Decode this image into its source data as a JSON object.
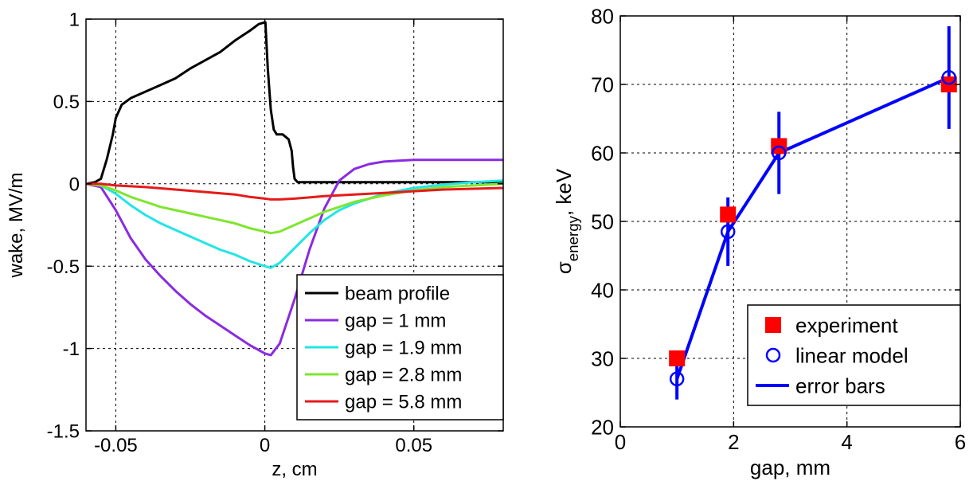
{
  "chart_data": [
    {
      "type": "line",
      "xlabel": "z, cm",
      "ylabel": "wake, MV/m",
      "xlim": [
        -0.06,
        0.08
      ],
      "ylim": [
        -1.5,
        1
      ],
      "xticks": [
        -0.05,
        0,
        0.05
      ],
      "xtick_labels": [
        "-0.05",
        "0",
        "0.05"
      ],
      "yticks": [
        -1.5,
        -1,
        -0.5,
        0,
        0.5,
        1
      ],
      "ytick_labels": [
        "-1.5",
        "-1",
        "-0.5",
        "0",
        "0.5",
        "1"
      ],
      "grid": true,
      "legend_position": "bottom-right",
      "series": [
        {
          "name": "beam profile",
          "color": "#000000",
          "x": [
            -0.06,
            -0.057,
            -0.055,
            -0.053,
            -0.051,
            -0.05,
            -0.048,
            -0.045,
            -0.04,
            -0.035,
            -0.03,
            -0.025,
            -0.02,
            -0.015,
            -0.01,
            -0.005,
            -0.002,
            0,
            0.0002,
            0.001,
            0.002,
            0.003,
            0.004,
            0.006,
            0.008,
            0.009,
            0.0095,
            0.01,
            0.011,
            0.013,
            0.02,
            0.03,
            0.04,
            0.05,
            0.06,
            0.07,
            0.08
          ],
          "y": [
            0,
            0.01,
            0.03,
            0.15,
            0.3,
            0.4,
            0.48,
            0.52,
            0.56,
            0.6,
            0.64,
            0.7,
            0.75,
            0.8,
            0.87,
            0.93,
            0.97,
            0.98,
            0.98,
            0.7,
            0.45,
            0.33,
            0.3,
            0.3,
            0.27,
            0.2,
            0.1,
            0.03,
            0.01,
            0.01,
            0.01,
            0.01,
            0.01,
            0.01,
            0.01,
            0.01,
            0.01
          ]
        },
        {
          "name": "gap = 1 mm",
          "color": "#8a2be2",
          "x": [
            -0.06,
            -0.055,
            -0.05,
            -0.045,
            -0.04,
            -0.035,
            -0.03,
            -0.025,
            -0.02,
            -0.015,
            -0.01,
            -0.005,
            0,
            0.002,
            0.005,
            0.01,
            0.015,
            0.02,
            0.025,
            0.03,
            0.035,
            0.04,
            0.045,
            0.05,
            0.055,
            0.06,
            0.07,
            0.08
          ],
          "y": [
            0,
            -0.02,
            -0.16,
            -0.33,
            -0.46,
            -0.56,
            -0.65,
            -0.73,
            -0.8,
            -0.86,
            -0.92,
            -0.98,
            -1.03,
            -1.04,
            -0.97,
            -0.7,
            -0.4,
            -0.15,
            0.02,
            0.09,
            0.12,
            0.135,
            0.14,
            0.145,
            0.145,
            0.145,
            0.145,
            0.145
          ]
        },
        {
          "name": "gap = 1.9 mm",
          "color": "#22e5e5",
          "x": [
            -0.06,
            -0.055,
            -0.05,
            -0.045,
            -0.04,
            -0.035,
            -0.03,
            -0.025,
            -0.02,
            -0.015,
            -0.01,
            -0.005,
            0,
            0.002,
            0.005,
            0.01,
            0.015,
            0.02,
            0.025,
            0.03,
            0.04,
            0.05,
            0.06,
            0.07,
            0.08
          ],
          "y": [
            0,
            -0.01,
            -0.06,
            -0.13,
            -0.19,
            -0.24,
            -0.28,
            -0.32,
            -0.36,
            -0.4,
            -0.43,
            -0.47,
            -0.5,
            -0.51,
            -0.48,
            -0.39,
            -0.3,
            -0.22,
            -0.16,
            -0.12,
            -0.06,
            -0.025,
            -0.005,
            0.01,
            0.02
          ]
        },
        {
          "name": "gap = 2.8 mm",
          "color": "#7ee62e",
          "x": [
            -0.06,
            -0.055,
            -0.05,
            -0.045,
            -0.04,
            -0.035,
            -0.03,
            -0.025,
            -0.02,
            -0.015,
            -0.01,
            -0.005,
            0,
            0.002,
            0.005,
            0.01,
            0.015,
            0.02,
            0.025,
            0.03,
            0.04,
            0.05,
            0.06,
            0.07,
            0.08
          ],
          "y": [
            0,
            -0.01,
            -0.04,
            -0.08,
            -0.11,
            -0.14,
            -0.16,
            -0.18,
            -0.2,
            -0.22,
            -0.24,
            -0.27,
            -0.29,
            -0.3,
            -0.29,
            -0.25,
            -0.21,
            -0.17,
            -0.14,
            -0.11,
            -0.07,
            -0.04,
            -0.02,
            -0.01,
            0
          ]
        },
        {
          "name": "gap = 5.8 mm",
          "color": "#e61a1a",
          "x": [
            -0.06,
            -0.055,
            -0.05,
            -0.04,
            -0.03,
            -0.02,
            -0.01,
            -0.005,
            0,
            0.002,
            0.005,
            0.01,
            0.02,
            0.03,
            0.04,
            0.05,
            0.06,
            0.07,
            0.08
          ],
          "y": [
            0,
            0,
            -0.01,
            -0.02,
            -0.035,
            -0.05,
            -0.065,
            -0.08,
            -0.09,
            -0.095,
            -0.095,
            -0.09,
            -0.075,
            -0.065,
            -0.055,
            -0.045,
            -0.035,
            -0.03,
            -0.025
          ]
        }
      ]
    },
    {
      "type": "scatter",
      "xlabel": "gap, mm",
      "ylabel_main": "σ",
      "ylabel_sub": "energy",
      "ylabel_tail": ", keV",
      "xlim": [
        0,
        6
      ],
      "ylim": [
        20,
        80
      ],
      "xticks": [
        0,
        2,
        4,
        6
      ],
      "xtick_labels": [
        "0",
        "2",
        "4",
        "6"
      ],
      "yticks": [
        20,
        30,
        40,
        50,
        60,
        70,
        80
      ],
      "ytick_labels": [
        "20",
        "30",
        "40",
        "50",
        "60",
        "70",
        "80"
      ],
      "grid": true,
      "legend_position": "bottom-right",
      "series": [
        {
          "name": "experiment",
          "color": "#ff0000",
          "marker": "square",
          "x": [
            1,
            1.9,
            2.8,
            5.8
          ],
          "y": [
            30,
            51,
            61,
            70
          ]
        },
        {
          "name": "linear model",
          "color": "#0000ff",
          "marker": "circle",
          "x": [
            1,
            1.9,
            2.8,
            5.8
          ],
          "y": [
            27,
            48.5,
            60,
            71
          ]
        },
        {
          "name": "error bars",
          "color": "#0000ff",
          "marker": "line",
          "x": [
            1,
            1.9,
            2.8,
            5.8
          ],
          "y": [
            27,
            48.5,
            60,
            71
          ],
          "error": [
            3,
            5,
            6,
            7.5
          ]
        }
      ]
    }
  ]
}
